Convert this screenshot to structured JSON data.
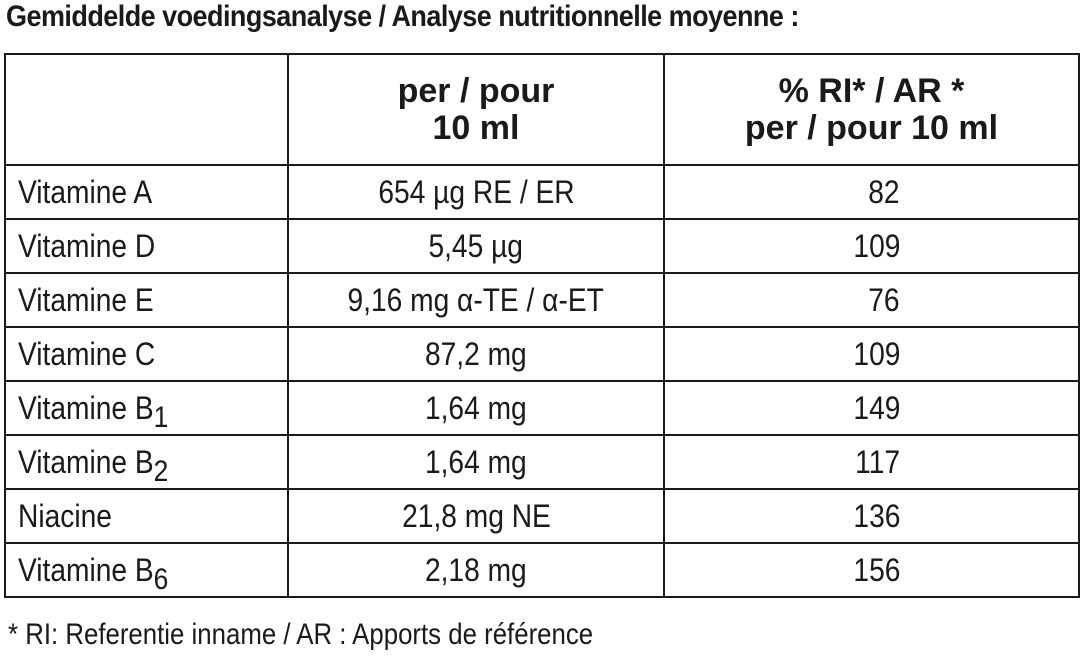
{
  "title": "Gemiddelde voedingsanalyse / Analyse nutritionnelle moyenne :",
  "header": {
    "col2_line1": "per / pour",
    "col2_line2": "10 ml",
    "col3_line1": "% RI* / AR *",
    "col3_line2": "per / pour 10 ml"
  },
  "rows": [
    {
      "name": "Vitamine A",
      "sub": "",
      "amount": "654 µg RE / ER",
      "ri": "82"
    },
    {
      "name": "Vitamine D",
      "sub": "",
      "amount": "5,45 µg",
      "ri": "109"
    },
    {
      "name": "Vitamine E",
      "sub": "",
      "amount": "9,16 mg α-TE / α-ET",
      "ri": "76"
    },
    {
      "name": "Vitamine C",
      "sub": "",
      "amount": "87,2 mg",
      "ri": "109"
    },
    {
      "name": "Vitamine B",
      "sub": "1",
      "amount": "1,64 mg",
      "ri": "149"
    },
    {
      "name": "Vitamine B",
      "sub": "2",
      "amount": "1,64 mg",
      "ri": "117"
    },
    {
      "name": "Niacine",
      "sub": "",
      "amount": "21,8 mg NE",
      "ri": "136"
    },
    {
      "name": "Vitamine B",
      "sub": "6",
      "amount": "2,18 mg",
      "ri": "156"
    }
  ],
  "footnote": "* RI: Referentie inname / AR : Apports de référence"
}
